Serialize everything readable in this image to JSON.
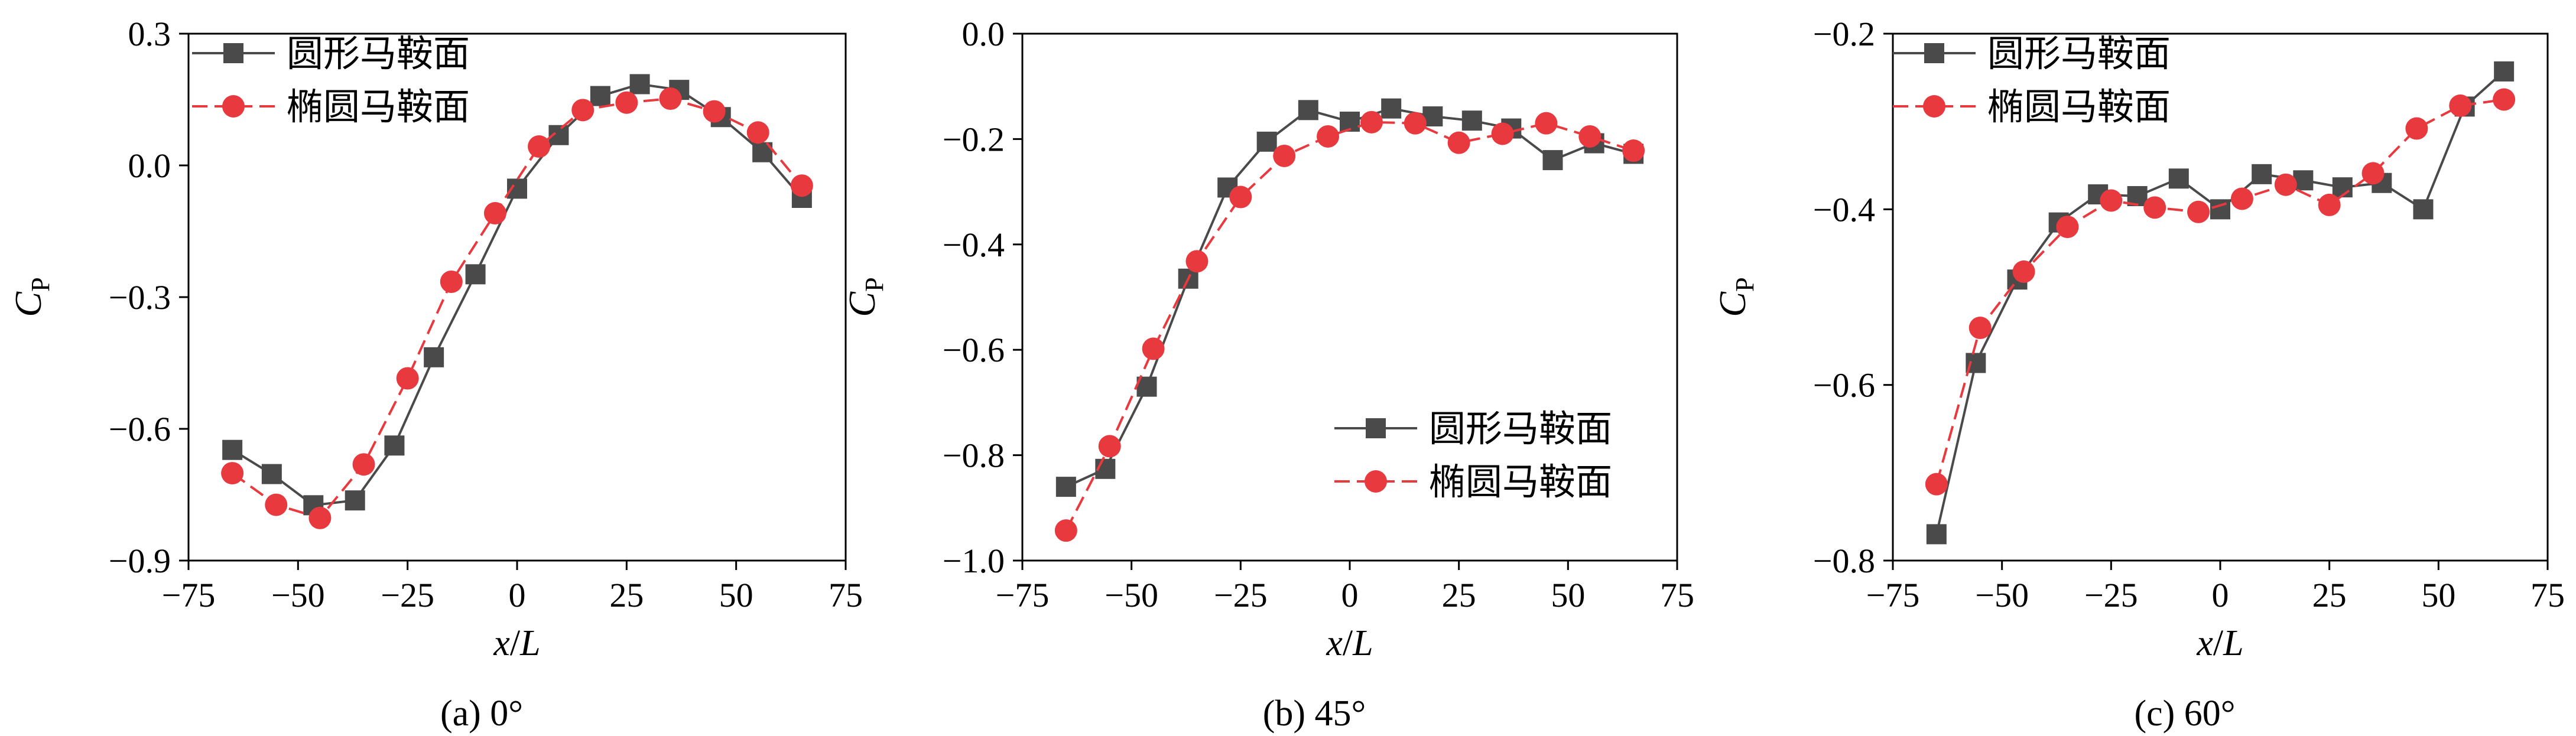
{
  "chart_data": [
    {
      "type": "line",
      "caption": "(a) 0°",
      "xlabel_main": "x",
      "xlabel_sep": "/",
      "xlabel_sub": "L",
      "ylabel_main": "C",
      "ylabel_sub": "P",
      "xlim": [
        -75,
        75
      ],
      "ylim": [
        -0.9,
        0.3
      ],
      "xticks": [
        -75,
        -50,
        -25,
        0,
        25,
        50,
        75
      ],
      "xtick_labels": [
        "−75",
        "−50",
        "−25",
        "0",
        "25",
        "50",
        "75"
      ],
      "yticks": [
        -0.9,
        -0.6,
        -0.3,
        0.0,
        0.3
      ],
      "ytick_labels": [
        "−0.9",
        "−0.6",
        "−0.3",
        "0.0",
        "0.3"
      ],
      "legend_position": "top-left",
      "series": [
        {
          "name": "圆形马鞍面",
          "marker": "square",
          "line_style": "solid",
          "color": "#4a4a4a",
          "x": [
            -65,
            -56,
            -46.5,
            -37,
            -28,
            -19,
            -9.5,
            0,
            9.5,
            19,
            28,
            37,
            46.5,
            56,
            65
          ],
          "y": [
            -0.648,
            -0.703,
            -0.774,
            -0.763,
            -0.638,
            -0.437,
            -0.248,
            -0.053,
            0.069,
            0.158,
            0.185,
            0.172,
            0.11,
            0.03,
            -0.074
          ]
        },
        {
          "name": "椭圆马鞍面",
          "marker": "circle",
          "line_style": "dashed",
          "color": "#e8393f",
          "x": [
            -65,
            -55,
            -45,
            -35,
            -25,
            -15,
            -5,
            5,
            15,
            25,
            35,
            45,
            55,
            65
          ],
          "y": [
            -0.701,
            -0.773,
            -0.803,
            -0.681,
            -0.485,
            -0.265,
            -0.109,
            0.043,
            0.126,
            0.143,
            0.152,
            0.123,
            0.075,
            -0.046
          ]
        }
      ]
    },
    {
      "type": "line",
      "caption": "(b) 45°",
      "xlabel_main": "x",
      "xlabel_sep": "/",
      "xlabel_sub": "L",
      "ylabel_main": "C",
      "ylabel_sub": "P",
      "xlim": [
        -75,
        75
      ],
      "ylim": [
        -1.0,
        0.0
      ],
      "xticks": [
        -75,
        -50,
        -25,
        0,
        25,
        50,
        75
      ],
      "xtick_labels": [
        "−75",
        "−50",
        "−25",
        "0",
        "25",
        "50",
        "75"
      ],
      "yticks": [
        -1.0,
        -0.8,
        -0.6,
        -0.4,
        -0.2,
        0.0
      ],
      "ytick_labels": [
        "−1.0",
        "−0.8",
        "−0.6",
        "−0.4",
        "−0.2",
        "0.0"
      ],
      "legend_position": "bottom-right",
      "series": [
        {
          "name": "圆形马鞍面",
          "marker": "square",
          "line_style": "solid",
          "color": "#4a4a4a",
          "x": [
            -65,
            -56,
            -46.5,
            -37,
            -28,
            -19,
            -9.5,
            0,
            9.5,
            19,
            28,
            37,
            46.5,
            56,
            65
          ],
          "y": [
            -0.86,
            -0.826,
            -0.67,
            -0.465,
            -0.292,
            -0.205,
            -0.145,
            -0.167,
            -0.142,
            -0.157,
            -0.165,
            -0.18,
            -0.24,
            -0.208,
            -0.228
          ]
        },
        {
          "name": "椭圆马鞍面",
          "marker": "circle",
          "line_style": "dashed",
          "color": "#e8393f",
          "x": [
            -65,
            -55,
            -45,
            -35,
            -25,
            -15,
            -5,
            5,
            15,
            25,
            35,
            45,
            55,
            65
          ],
          "y": [
            -0.943,
            -0.783,
            -0.598,
            -0.432,
            -0.31,
            -0.232,
            -0.195,
            -0.168,
            -0.17,
            -0.207,
            -0.19,
            -0.17,
            -0.195,
            -0.222
          ]
        }
      ]
    },
    {
      "type": "line",
      "caption": "(c) 60°",
      "xlabel_main": "x",
      "xlabel_sep": "/",
      "xlabel_sub": "L",
      "ylabel_main": "C",
      "ylabel_sub": "P",
      "xlim": [
        -75,
        75
      ],
      "ylim": [
        -0.8,
        -0.2
      ],
      "xticks": [
        -75,
        -50,
        -25,
        0,
        25,
        50,
        75
      ],
      "xtick_labels": [
        "−75",
        "−50",
        "−25",
        "0",
        "25",
        "50",
        "75"
      ],
      "yticks": [
        -0.8,
        -0.6,
        -0.4,
        -0.2
      ],
      "ytick_labels": [
        "−0.8",
        "−0.6",
        "−0.4",
        "−0.2"
      ],
      "legend_position": "top-left",
      "series": [
        {
          "name": "圆形马鞍面",
          "marker": "square",
          "line_style": "solid",
          "color": "#4a4a4a",
          "x": [
            -65,
            -56,
            -46.5,
            -37,
            -28,
            -19,
            -9.5,
            0,
            9.5,
            19,
            28,
            37,
            46.5,
            56,
            65
          ],
          "y": [
            -0.77,
            -0.575,
            -0.48,
            -0.415,
            -0.383,
            -0.385,
            -0.365,
            -0.4,
            -0.36,
            -0.367,
            -0.375,
            -0.37,
            -0.4,
            -0.283,
            -0.243
          ]
        },
        {
          "name": "椭圆马鞍面",
          "marker": "circle",
          "line_style": "dashed",
          "color": "#e8393f",
          "x": [
            -65,
            -55,
            -45,
            -35,
            -25,
            -15,
            -5,
            5,
            15,
            25,
            35,
            45,
            55,
            65
          ],
          "y": [
            -0.713,
            -0.535,
            -0.471,
            -0.42,
            -0.39,
            -0.398,
            -0.403,
            -0.388,
            -0.372,
            -0.395,
            -0.359,
            -0.308,
            -0.282,
            -0.275
          ]
        }
      ]
    }
  ]
}
